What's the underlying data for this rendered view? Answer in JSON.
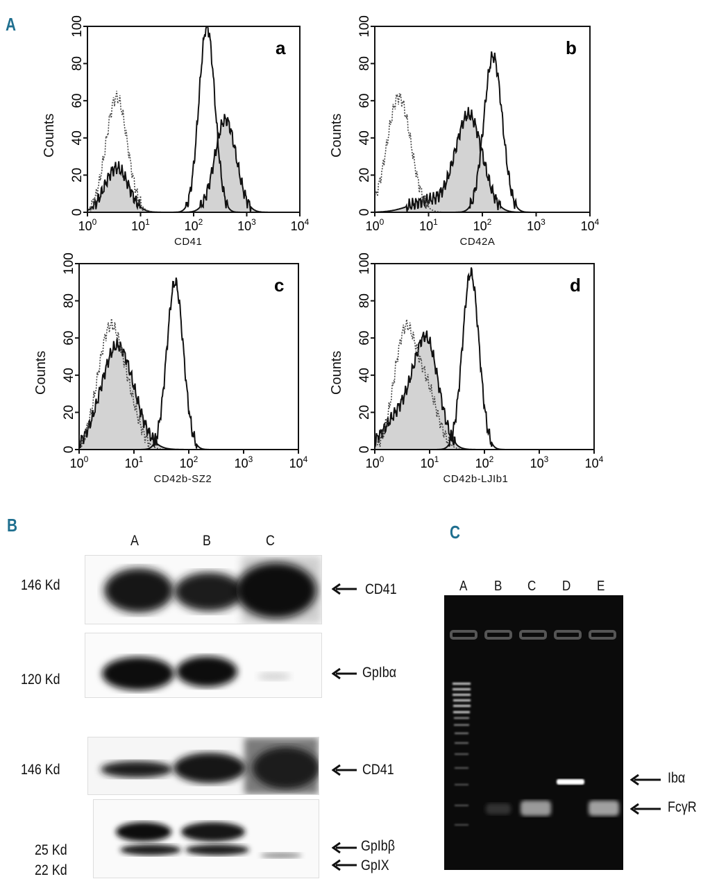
{
  "figure": {
    "panels": {
      "A": "A",
      "B": "B",
      "C": "C"
    }
  },
  "histograms": [
    {
      "id": "a",
      "letter": "a",
      "xlabel": "CD41",
      "ylabel": "Counts"
    },
    {
      "id": "b",
      "letter": "b",
      "xlabel": "CD42A",
      "ylabel": "Counts"
    },
    {
      "id": "c",
      "letter": "c",
      "xlabel": "CD42b-SZ2",
      "ylabel": "Counts"
    },
    {
      "id": "d",
      "letter": "d",
      "xlabel": "CD42b-LJIb1",
      "ylabel": "Counts"
    }
  ],
  "axis": {
    "yticks": [
      "0",
      "20",
      "40",
      "60",
      "80",
      "100"
    ],
    "xticks": [
      {
        "base": "10",
        "exp": "0"
      },
      {
        "base": "10",
        "exp": "1"
      },
      {
        "base": "10",
        "exp": "2"
      },
      {
        "base": "10",
        "exp": "3"
      },
      {
        "base": "10",
        "exp": "4"
      }
    ]
  },
  "western": {
    "lanes": [
      "A",
      "B",
      "C"
    ],
    "blots": [
      {
        "mw": "146 Kd",
        "protein": "CD41"
      },
      {
        "mw": "120 Kd",
        "protein": "GpIbα"
      },
      {
        "mw": "146 Kd",
        "protein": "CD41"
      },
      {
        "mw": "25 Kd",
        "mw2": "22 Kd",
        "protein": "GpIbβ",
        "protein2": "GpIX"
      }
    ]
  },
  "gel": {
    "lanes": [
      "A",
      "B",
      "C",
      "D",
      "E"
    ],
    "bands": [
      "Ibα",
      "FcγR"
    ]
  },
  "chart_data": [
    {
      "type": "line",
      "panel": "a",
      "xlabel": "CD41",
      "ylabel": "Counts",
      "xscale": "log",
      "xlim": [
        1,
        10000
      ],
      "ylim": [
        0,
        100
      ]
    },
    {
      "type": "line",
      "panel": "b",
      "xlabel": "CD42A",
      "ylabel": "Counts",
      "xscale": "log",
      "xlim": [
        1,
        10000
      ],
      "ylim": [
        0,
        100
      ]
    },
    {
      "type": "line",
      "panel": "c",
      "xlabel": "CD42b-SZ2",
      "ylabel": "Counts",
      "xscale": "log",
      "xlim": [
        1,
        10000
      ],
      "ylim": [
        0,
        100
      ]
    },
    {
      "type": "line",
      "panel": "d",
      "xlabel": "CD42b-LJIb1",
      "ylabel": "Counts",
      "xscale": "log",
      "xlim": [
        1,
        10000
      ],
      "ylim": [
        0,
        100
      ]
    }
  ]
}
